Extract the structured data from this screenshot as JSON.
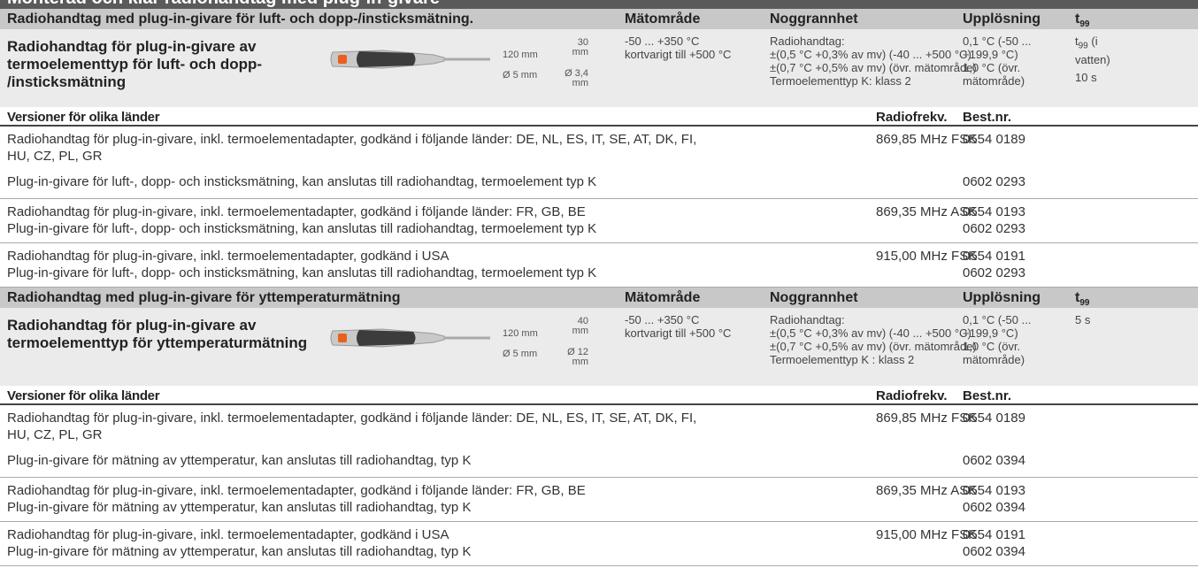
{
  "page_title": "Monterad och klar radiohandtag med plug-in-givare",
  "sections": [
    {
      "header": {
        "title": "Radiohandtag med plug-in-givare för luft- och dopp-/insticksmätning.",
        "range": "Mätområde",
        "accuracy": "Noggrannhet",
        "resolution": "Upplösning",
        "t99": {
          "symbol": "t",
          "sub": "99"
        }
      },
      "product": {
        "name": [
          "Radiohandtag för plug-in-givare av",
          "termoelementtyp för luft- och dopp-",
          "/insticksmätning"
        ],
        "dims": {
          "length": "120 mm",
          "probe_length": [
            "30",
            "mm"
          ],
          "diameter": "Ø 5 mm",
          "tip": [
            "Ø 3,4",
            "mm"
          ]
        },
        "range": [
          "-50 ... +350 °C",
          "kortvarigt till +500 °C"
        ],
        "accuracy": [
          "Radiohandtag:",
          "±(0,5 °C +0,3% av mv) (-40 ... +500 °C)",
          "±(0,7 °C +0,5% av mv) (övr. mätområde)",
          "Termoelementtyp K: klass 2"
        ],
        "resolution": [
          "0,1 °C (-50 ...",
          "+199,9 °C)",
          "1,0 °C (övr.",
          "mätområde)"
        ],
        "t99": {
          "symbol": "t",
          "sub": "99",
          "note": [
            "(i",
            "vatten)"
          ],
          "value": "10 s"
        }
      },
      "versions_header": {
        "title": "Versioner för olika länder",
        "freq": "Radiofrekv.",
        "order": "Best.nr."
      },
      "versions": [
        [
          {
            "text": "Radiohandtag för plug-in-givare, inkl. termoelementadapter, godkänd i följande länder:  DE, NL, ES, IT, SE, AT, DK, FI,",
            "freq": "869,85 MHz FSK",
            "order": "0554 0189"
          },
          {
            "text": "HU, CZ, PL, GR"
          },
          {
            "text": "Plug-in-givare för luft-, dopp- och insticksmätning, kan anslutas till radiohandtag, termoelement typ K",
            "order": "0602 0293"
          }
        ],
        [
          {
            "text": "Radiohandtag för plug-in-givare, inkl. termoelementadapter, godkänd i följande länder:  FR, GB, BE",
            "freq": "869,35 MHz ASK",
            "order": "0554 0193"
          },
          {
            "text": "Plug-in-givare för luft-, dopp- och insticksmätning, kan anslutas till radiohandtag, termoelement typ K",
            "order": "0602 0293"
          }
        ],
        [
          {
            "text": "Radiohandtag för plug-in-givare, inkl. termoelementadapter, godkänd i USA",
            "freq": "915,00 MHz FSK",
            "order": "0554 0191"
          },
          {
            "text": "Plug-in-givare för luft-, dopp- och insticksmätning, kan anslutas till radiohandtag, termoelement typ K",
            "order": "0602 0293"
          }
        ]
      ]
    },
    {
      "header": {
        "title": "Radiohandtag med plug-in-givare för yttemperaturmätning",
        "range": "Mätområde",
        "accuracy": "Noggrannhet",
        "resolution": "Upplösning",
        "t99": {
          "symbol": "t",
          "sub": "99"
        }
      },
      "product": {
        "name": [
          "Radiohandtag för plug-in-givare av",
          "termoelementtyp för yttemperaturmätning"
        ],
        "dims": {
          "length": "120 mm",
          "probe_length": [
            "40",
            "mm"
          ],
          "diameter": "Ø 5 mm",
          "tip": [
            "Ø 12",
            "mm"
          ]
        },
        "range": [
          "-50 ... +350 °C",
          "kortvarigt till +500 °C"
        ],
        "accuracy": [
          "Radiohandtag:",
          "±(0,5 °C +0,3% av mv) (-40 ... +500 °C)",
          "±(0,7 °C +0,5% av mv) (övr. mätområde)",
          "Termoelementtyp K : klass 2"
        ],
        "resolution": [
          "0,1 °C (-50 ...",
          "+199,9 °C)",
          "1,0 °C (övr.",
          "mätområde)"
        ],
        "t99": {
          "value": "5 s"
        }
      },
      "versions_header": {
        "title": "Versioner för olika länder",
        "freq": "Radiofrekv.",
        "order": "Best.nr."
      },
      "versions": [
        [
          {
            "text": "Radiohandtag för plug-in-givare, inkl. termoelementadapter, godkänd i följande länder:  DE, NL, ES, IT, SE, AT, DK, FI,",
            "freq": "869,85 MHz FSK",
            "order": "0554 0189"
          },
          {
            "text": "HU, CZ, PL, GR"
          },
          {
            "text": "Plug-in-givare för mätning av yttemperatur, kan anslutas till radiohandtag, typ K",
            "order": "0602 0394"
          }
        ],
        [
          {
            "text": "Radiohandtag för plug-in-givare, inkl. termoelementadapter, godkänd i följande länder:  FR, GB, BE",
            "freq": "869,35 MHz ASK",
            "order": "0554 0193"
          },
          {
            "text": "Plug-in-givare för mätning av yttemperatur, kan anslutas till radiohandtag, typ K",
            "order": "0602 0394"
          }
        ],
        [
          {
            "text": "Radiohandtag för plug-in-givare, inkl. termoelementadapter, godkänd i USA",
            "freq": "915,00 MHz FSK",
            "order": "0554 0191"
          },
          {
            "text": "Plug-in-givare för mätning av yttemperatur, kan anslutas till radiohandtag, typ K",
            "order": "0602 0394"
          }
        ]
      ]
    }
  ]
}
